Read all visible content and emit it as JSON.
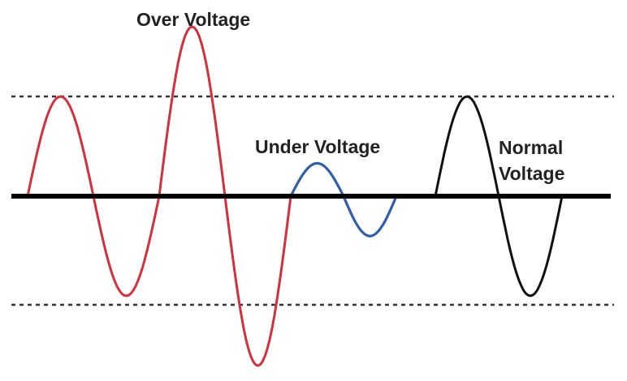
{
  "labels": {
    "over": "Over Voltage",
    "under": "Under Voltage",
    "normal_line1": "Normal",
    "normal_line2": "Voltage"
  },
  "colors": {
    "over_wave": "#d2303c",
    "under_wave": "#2f5fa8",
    "normal_wave": "#111111",
    "axis": "#000000",
    "limit_lines": "#333333",
    "text": "#222222"
  },
  "waves": {
    "over": {
      "amplitudes": [
        1,
        -1,
        1.7,
        -1.7
      ]
    },
    "under": {
      "amplitudes": [
        0.33,
        -0.4
      ]
    },
    "normal": {
      "amplitudes": [
        1,
        -1
      ]
    }
  }
}
